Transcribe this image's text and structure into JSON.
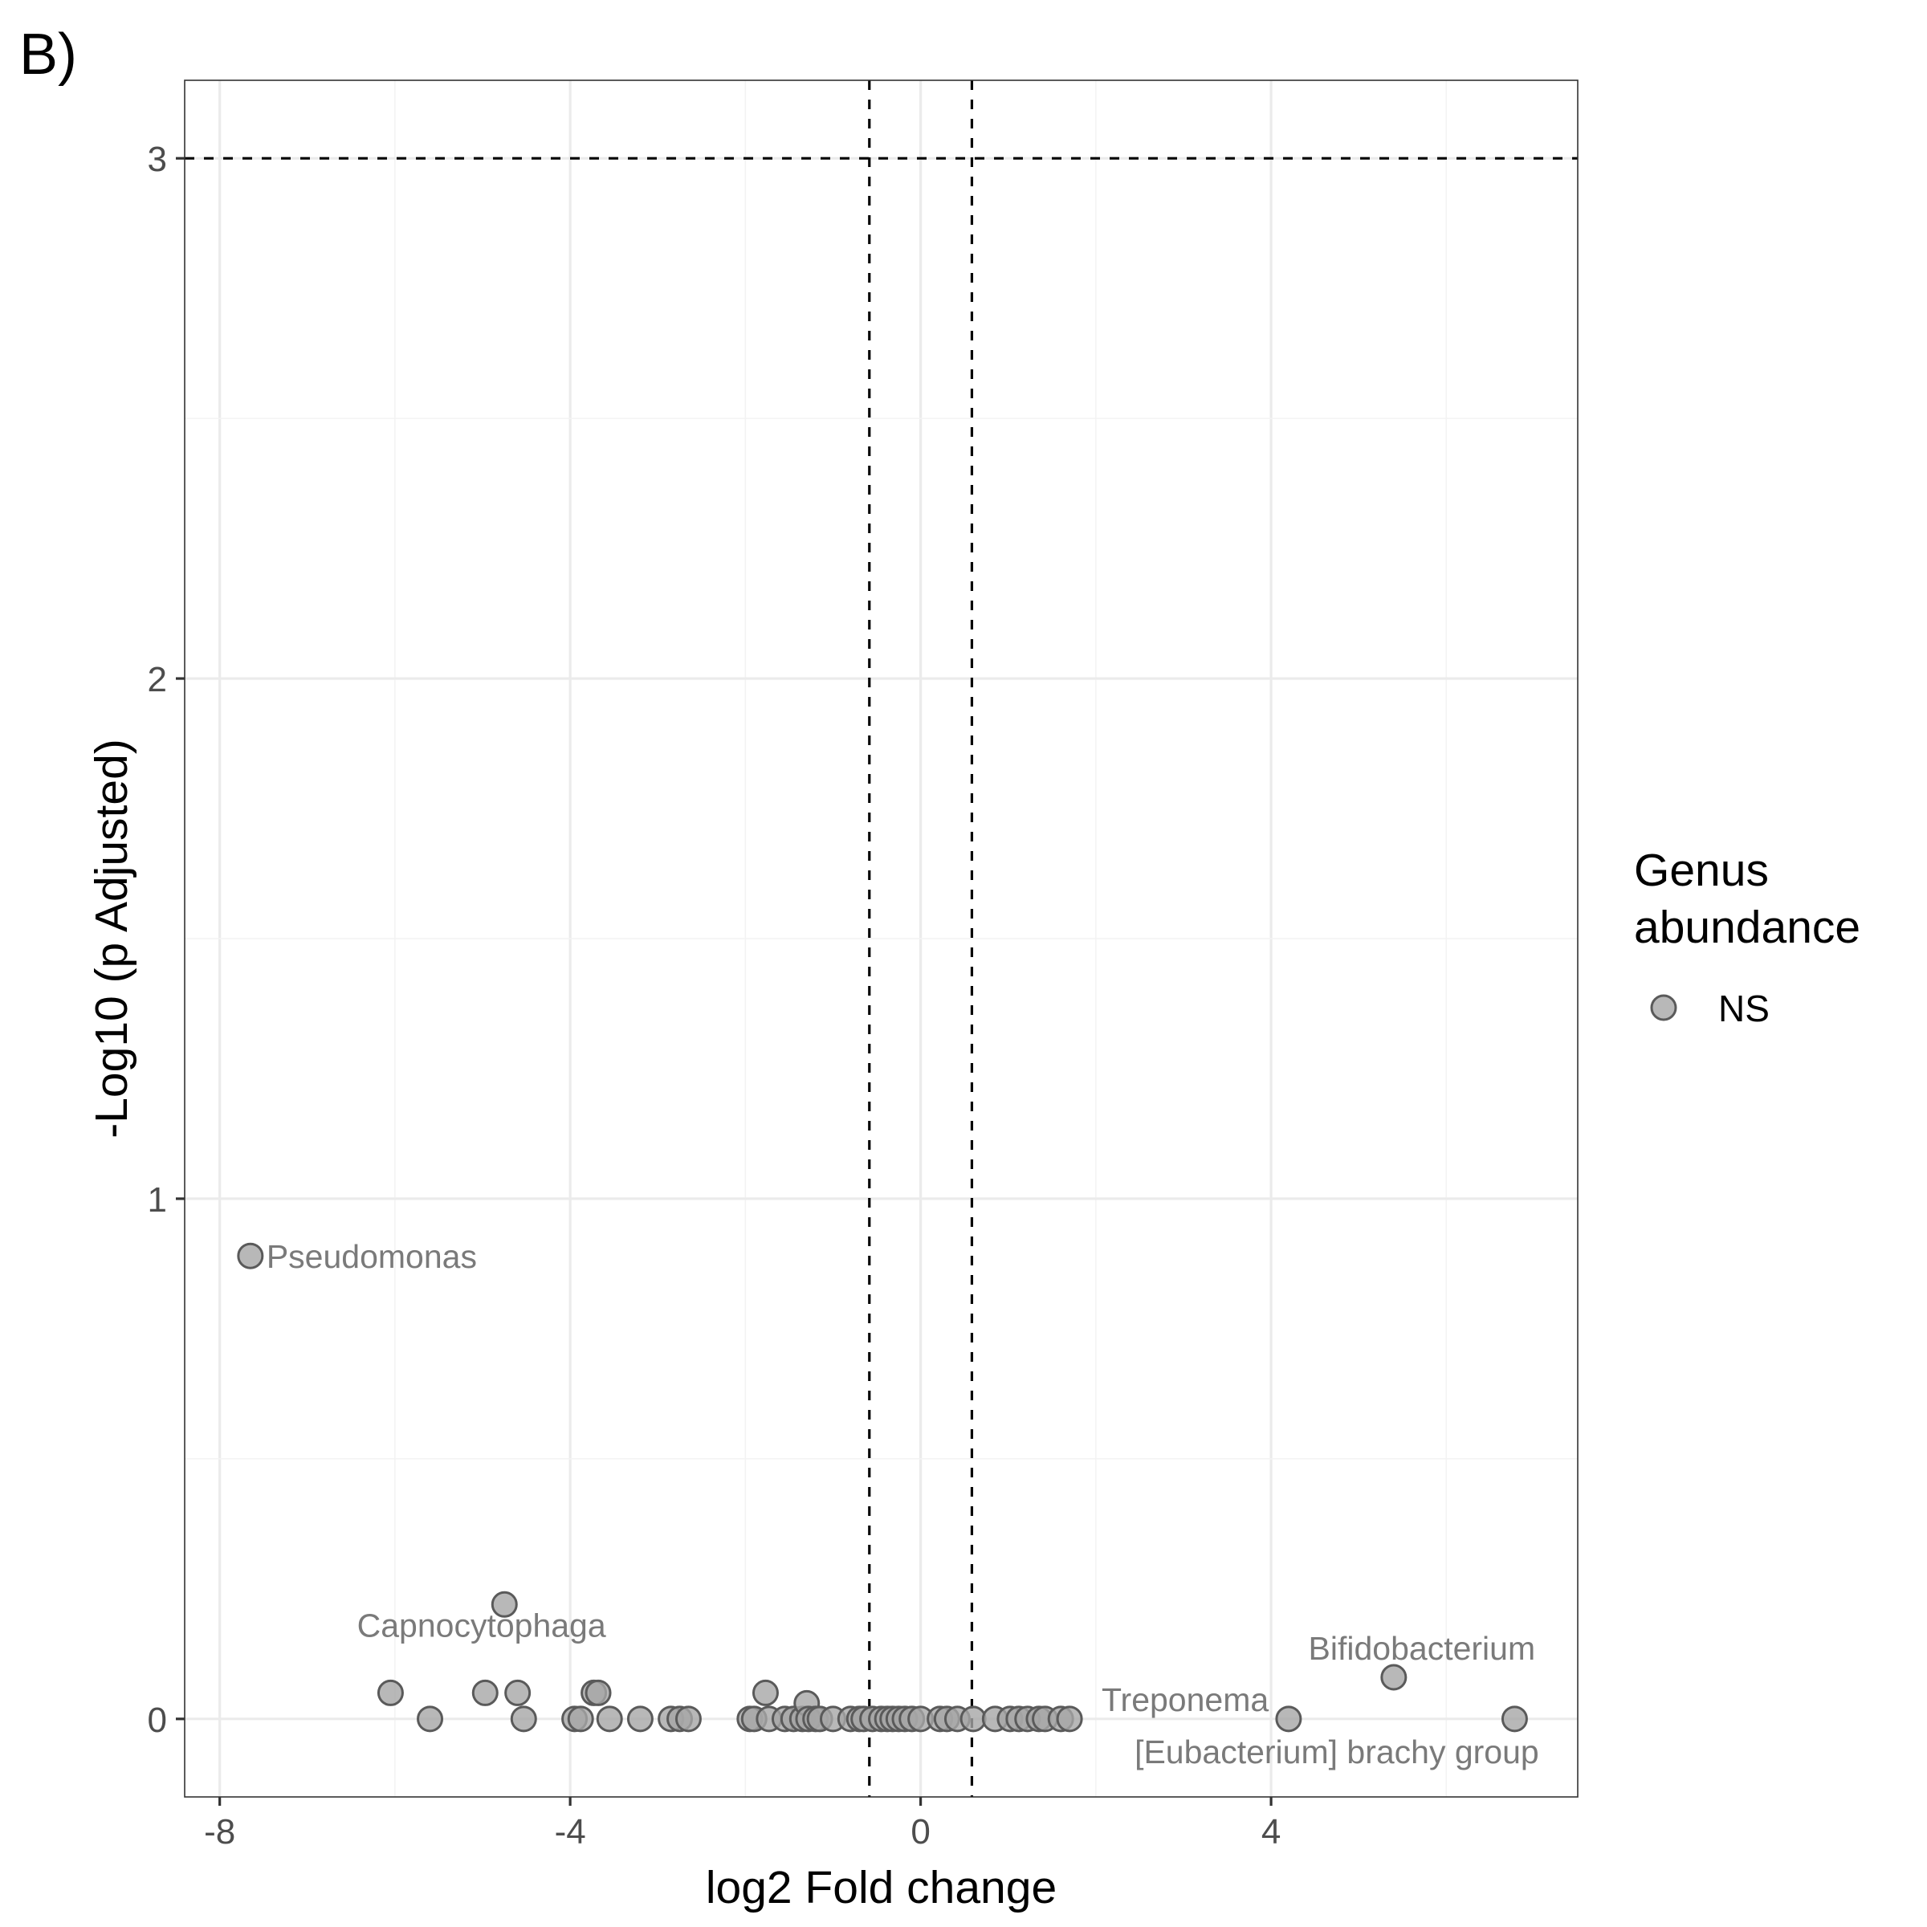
{
  "panel_tag": "B)",
  "chart_data": {
    "type": "scatter",
    "title": "",
    "xlabel": "log2 Fold change",
    "ylabel": "-Log10 (p Adjusted)",
    "xlim": [
      -8.4,
      7.5
    ],
    "ylim": [
      -0.15,
      3.15
    ],
    "x_ticks": [
      -8,
      -4,
      0,
      4
    ],
    "x_tick_labels": [
      "-8",
      "-4",
      "0",
      "4"
    ],
    "y_ticks": [
      0,
      1,
      2,
      3
    ],
    "y_tick_labels": [
      "0",
      "1",
      "2",
      "3"
    ],
    "grid": true,
    "reference_lines": {
      "vertical": [
        -0.585,
        0.585
      ],
      "horizontal": [
        3
      ]
    },
    "legend": {
      "title_lines": [
        "Genus",
        "abundance"
      ],
      "placement": "right",
      "entries": [
        "NS"
      ]
    },
    "series": [
      {
        "name": "NS",
        "color": "#a6a6a6",
        "points": [
          {
            "x": -7.65,
            "y": 0.89,
            "label": "Pseudomonas"
          },
          {
            "x": -4.75,
            "y": 0.22
          },
          {
            "x": -6.05,
            "y": 0.05
          },
          {
            "x": -5.6,
            "y": 0.0
          },
          {
            "x": -4.97,
            "y": 0.05
          },
          {
            "x": -4.6,
            "y": 0.05,
            "label": "Capnocytophaga"
          },
          {
            "x": -4.53,
            "y": 0.0
          },
          {
            "x": -3.95,
            "y": 0.0
          },
          {
            "x": -3.88,
            "y": 0.0
          },
          {
            "x": -3.73,
            "y": 0.05
          },
          {
            "x": -3.68,
            "y": 0.05
          },
          {
            "x": -3.55,
            "y": 0.0
          },
          {
            "x": -3.2,
            "y": 0.0
          },
          {
            "x": -2.85,
            "y": 0.0
          },
          {
            "x": -2.75,
            "y": 0.0
          },
          {
            "x": -2.65,
            "y": 0.0
          },
          {
            "x": -1.95,
            "y": 0.0
          },
          {
            "x": -1.9,
            "y": 0.0
          },
          {
            "x": -1.77,
            "y": 0.05
          },
          {
            "x": -1.73,
            "y": 0.0
          },
          {
            "x": -1.55,
            "y": 0.0
          },
          {
            "x": -1.45,
            "y": 0.0
          },
          {
            "x": -1.35,
            "y": 0.0
          },
          {
            "x": -1.3,
            "y": 0.03
          },
          {
            "x": -1.28,
            "y": 0.0
          },
          {
            "x": -1.2,
            "y": 0.0
          },
          {
            "x": -1.15,
            "y": 0.0
          },
          {
            "x": -1.0,
            "y": 0.0
          },
          {
            "x": -0.8,
            "y": 0.0
          },
          {
            "x": -0.7,
            "y": 0.0
          },
          {
            "x": -0.65,
            "y": 0.0
          },
          {
            "x": -0.55,
            "y": 0.0
          },
          {
            "x": -0.45,
            "y": 0.0
          },
          {
            "x": -0.38,
            "y": 0.0
          },
          {
            "x": -0.32,
            "y": 0.0
          },
          {
            "x": -0.25,
            "y": 0.0
          },
          {
            "x": -0.18,
            "y": 0.0
          },
          {
            "x": -0.1,
            "y": 0.0
          },
          {
            "x": 0.0,
            "y": 0.0
          },
          {
            "x": 0.22,
            "y": 0.0
          },
          {
            "x": 0.3,
            "y": 0.0
          },
          {
            "x": 0.42,
            "y": 0.0
          },
          {
            "x": 0.6,
            "y": 0.0
          },
          {
            "x": 0.85,
            "y": 0.0
          },
          {
            "x": 1.02,
            "y": 0.0
          },
          {
            "x": 1.12,
            "y": 0.0
          },
          {
            "x": 1.22,
            "y": 0.0
          },
          {
            "x": 1.35,
            "y": 0.0
          },
          {
            "x": 1.42,
            "y": 0.0
          },
          {
            "x": 1.6,
            "y": 0.0
          },
          {
            "x": 1.7,
            "y": 0.0,
            "label": "Treponema"
          },
          {
            "x": 4.2,
            "y": 0.0,
            "label": "[Eubacterium] brachy group"
          },
          {
            "x": 5.4,
            "y": 0.08,
            "label": "Bifidobacterium"
          },
          {
            "x": 6.78,
            "y": 0.0
          }
        ]
      }
    ]
  }
}
